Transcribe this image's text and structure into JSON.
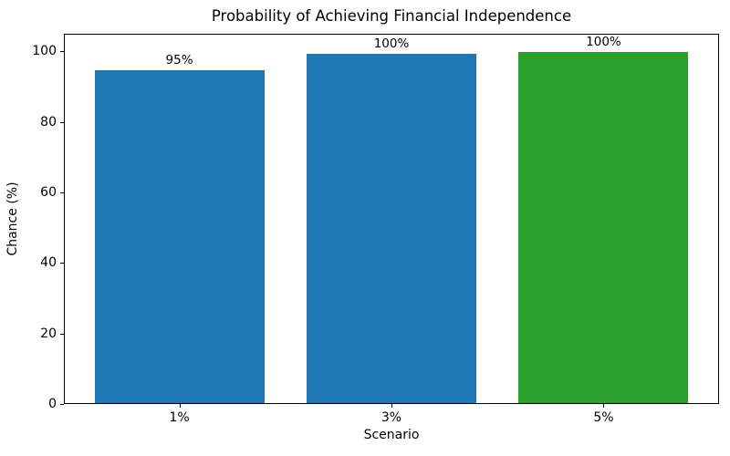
{
  "chart_data": {
    "type": "bar",
    "title": "Probability of Achieving Financial Independence",
    "xlabel": "Scenario",
    "ylabel": "Chance (%)",
    "categories": [
      "1%",
      "3%",
      "5%"
    ],
    "values": [
      94.8,
      99.5,
      100
    ],
    "bar_labels": [
      "95%",
      "100%",
      "100%"
    ],
    "bar_colors": [
      "#1f77b4",
      "#1f77b4",
      "#2ca02c"
    ],
    "ylim": [
      0,
      105
    ],
    "yticks": [
      0,
      20,
      40,
      60,
      80,
      100
    ],
    "grid": false,
    "legend_position": "none",
    "bar_width_fraction": 0.8,
    "xlim_units": [
      -0.54,
      2.54
    ]
  }
}
